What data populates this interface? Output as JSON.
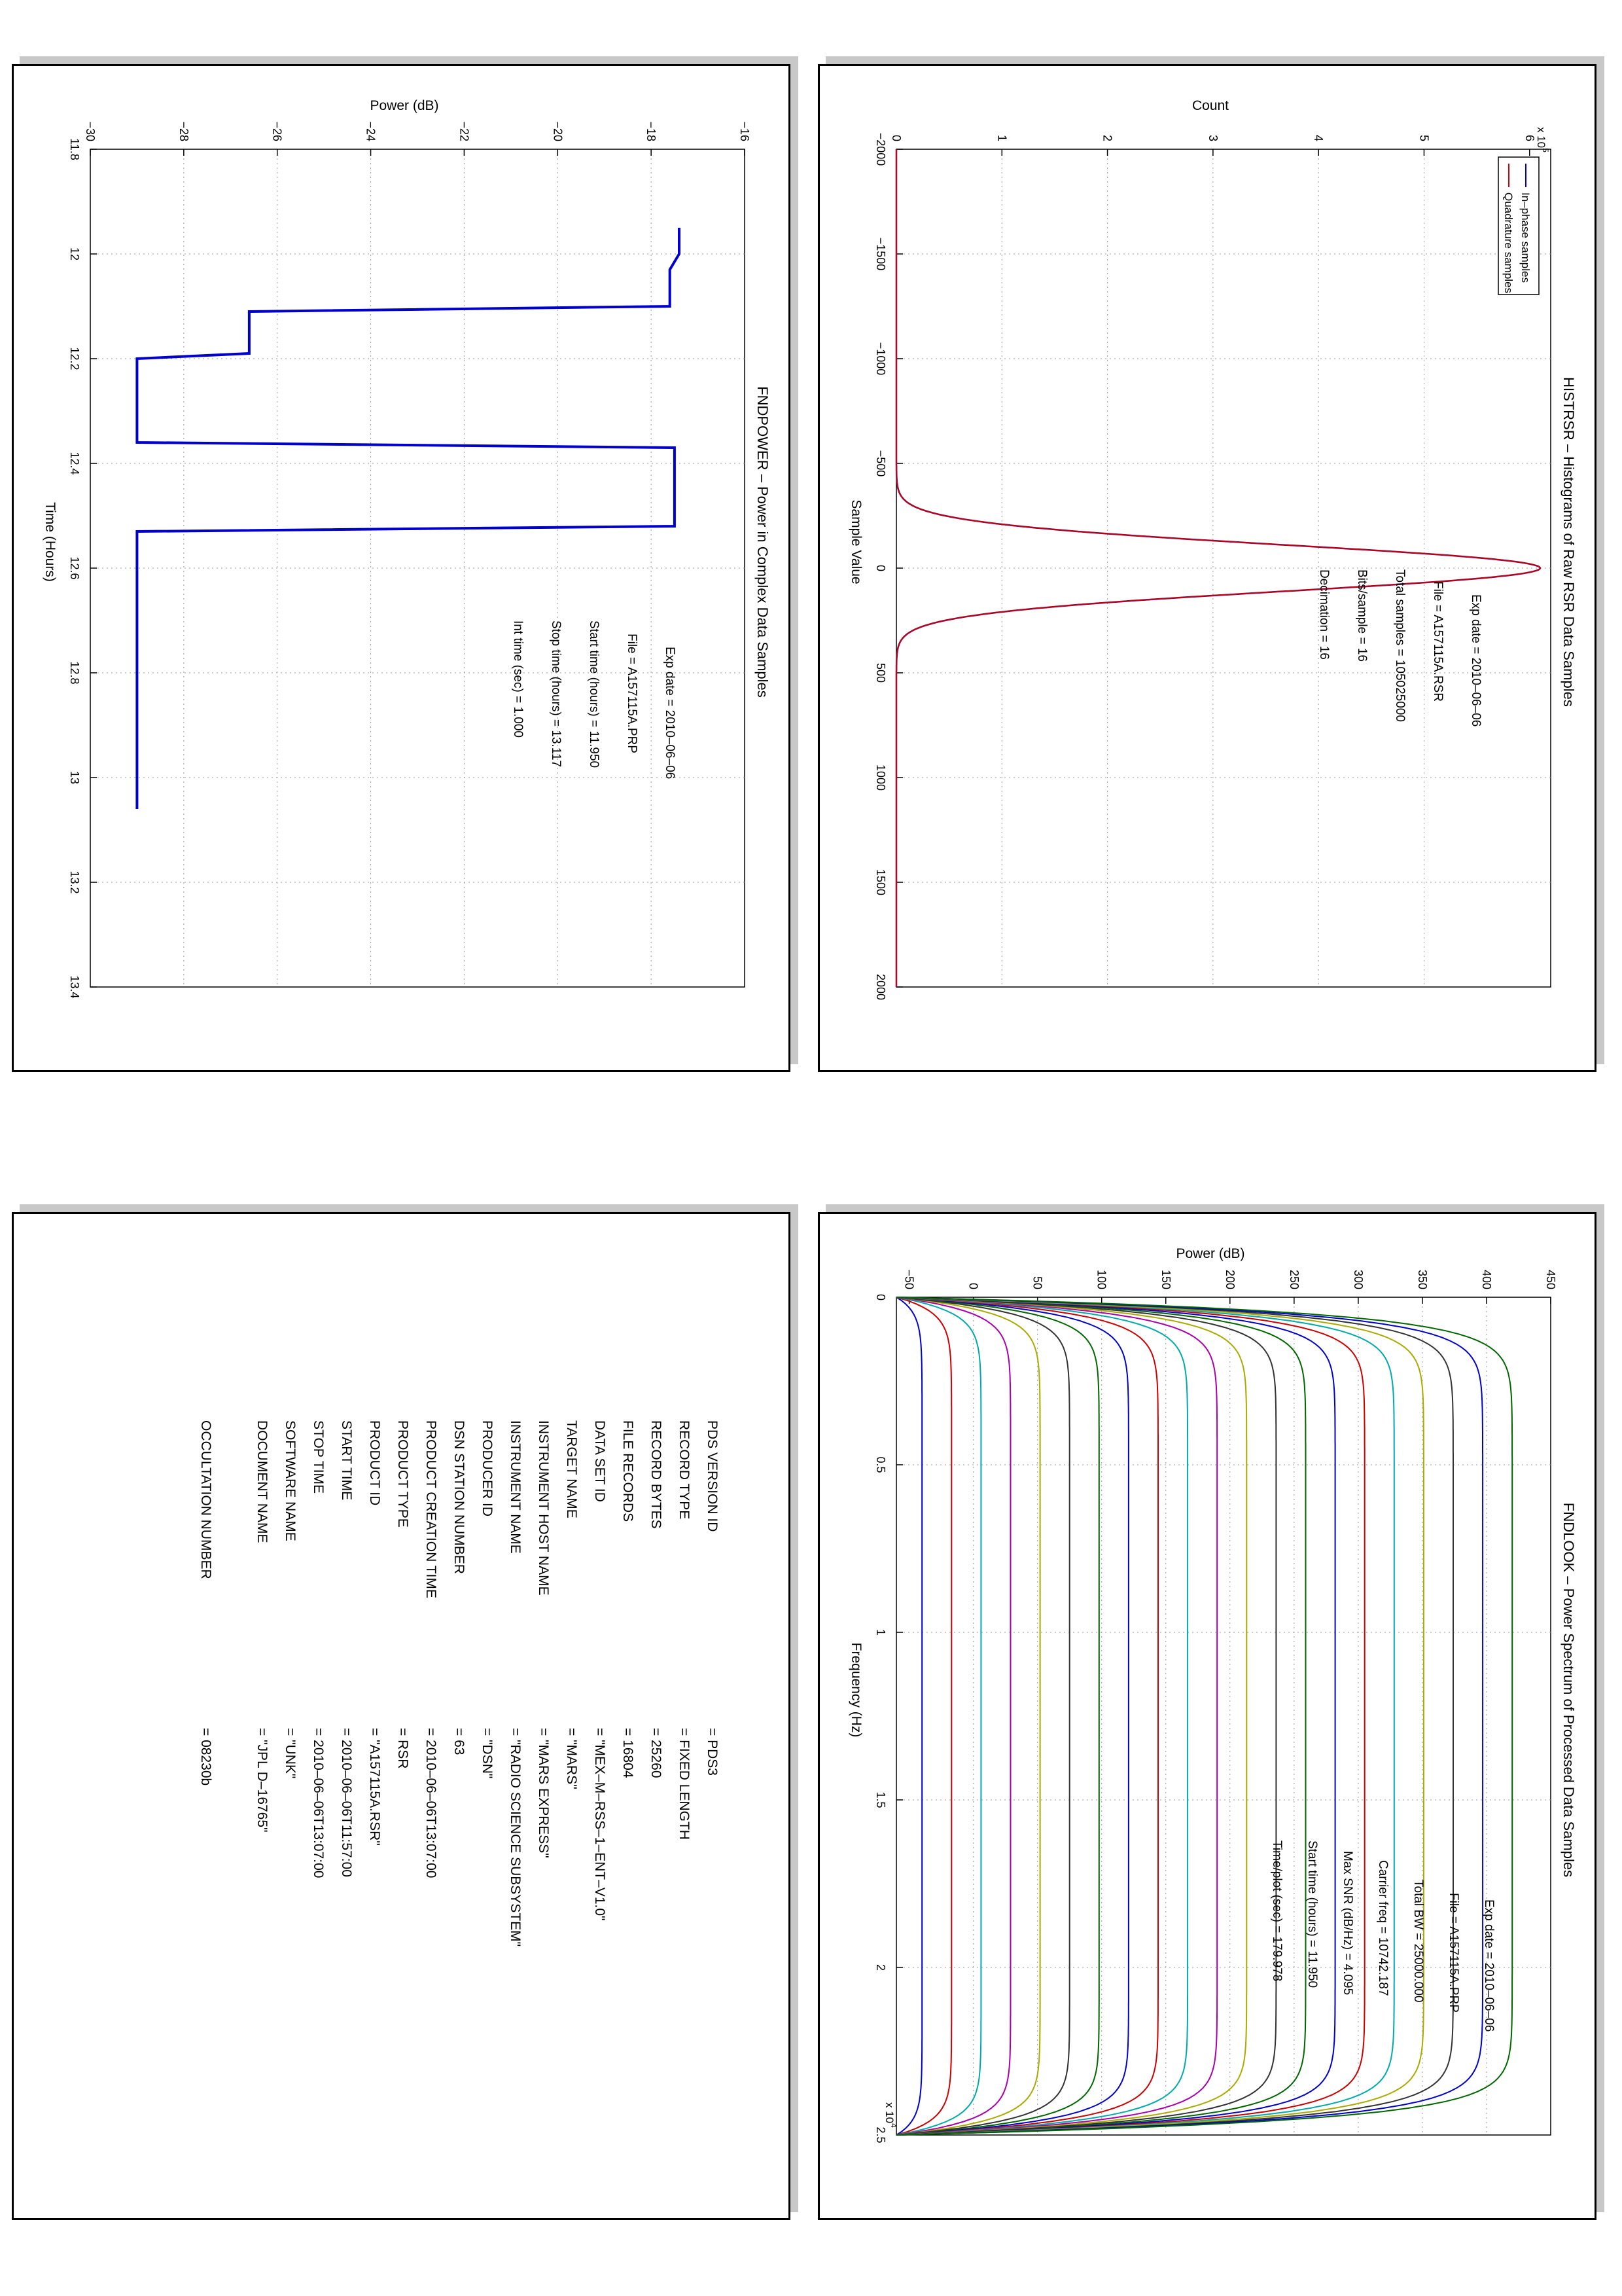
{
  "chart_data": [
    {
      "type": "line",
      "title": "HISTRSR – Histograms of Raw RSR Data Samples",
      "xlabel": "Sample Value",
      "ylabel": "Count",
      "y_multiplier": "x 10",
      "y_multiplier_exp": "5",
      "xlim": [
        -2000,
        2000
      ],
      "ylim": [
        0,
        6.2
      ],
      "xticks": [
        "−2000",
        "−1500",
        "−1000",
        "−500",
        "0",
        "500",
        "1000",
        "1500",
        "2000"
      ],
      "yticks": [
        "0",
        "1",
        "2",
        "3",
        "4",
        "5",
        "6"
      ],
      "grid": true,
      "legend_position": "top-left",
      "series": [
        {
          "name": "In–phase samples",
          "color": "#0000cc",
          "shape": "gaussian",
          "center": 0,
          "sigma": 110,
          "peak": 6.1
        },
        {
          "name": "Quadrature samples",
          "color": "#cc0000",
          "shape": "gaussian",
          "center": 0,
          "sigma": 110,
          "peak": 6.1
        }
      ],
      "annotations": [
        {
          "label": "Exp date =",
          "value": "2010–06–06"
        },
        {
          "label": "File =",
          "value": "A157115A.RSR"
        },
        {
          "label": "Total samples =",
          "value": "105025000"
        },
        {
          "label": "Bits/sample   =",
          "value": "16"
        },
        {
          "label": "Decimation    =",
          "value": "16"
        }
      ]
    },
    {
      "type": "line",
      "title": "FNDPOWER – Power in Complex Data Samples",
      "xlabel": "Time (Hours)",
      "ylabel": "Power (dB)",
      "xlim": [
        11.8,
        13.4
      ],
      "ylim": [
        -30,
        -16
      ],
      "xticks": [
        "11.8",
        "12",
        "12.2",
        "12.4",
        "12.6",
        "12.8",
        "13",
        "13.2",
        "13.4"
      ],
      "yticks": [
        "−30",
        "−28",
        "−26",
        "−24",
        "−22",
        "−20",
        "−18",
        "−16"
      ],
      "grid": true,
      "series": [
        {
          "name": "",
          "color": "#0000cc",
          "x": [
            11.95,
            12.0,
            12.03,
            12.1,
            12.11,
            12.19,
            12.2,
            12.36,
            12.37,
            12.52,
            12.53,
            13.06
          ],
          "y": [
            -17.4,
            -17.4,
            -17.6,
            -17.6,
            -26.6,
            -26.6,
            -29.0,
            -29.0,
            -17.5,
            -17.5,
            -29.0,
            -29.0
          ]
        }
      ],
      "annotations": [
        {
          "label": "Exp date =",
          "value": "2010–06–06"
        },
        {
          "label": "File =",
          "value": "A157115A.PRP"
        },
        {
          "label": "Start time (hours) =",
          "value": "11.950"
        },
        {
          "label": "Stop time (hours) =",
          "value": "13.117"
        },
        {
          "label": "Int time (sec) =",
          "value": "1.000"
        }
      ]
    },
    {
      "type": "line",
      "title": "FNDLOOK – Power Spectrum of Processed Data Samples",
      "xlabel": "Frequency (Hz)",
      "ylabel": "Power (dB)",
      "x_multiplier": "x 10",
      "x_multiplier_exp": "4",
      "xlim": [
        0,
        25000
      ],
      "ylim": [
        -60,
        450
      ],
      "xticks": [
        "0",
        "0.5",
        "1",
        "1.5",
        "2",
        "2.5"
      ],
      "yticks": [
        "−50",
        "0",
        "50",
        "100",
        "150",
        "200",
        "250",
        "300",
        "350",
        "400",
        "450"
      ],
      "grid": true,
      "series": [
        {
          "name": "",
          "color": "#0000cc",
          "level": -40
        },
        {
          "name": "",
          "color": "#cc0000",
          "level": -17
        },
        {
          "name": "",
          "color": "#00aaaa",
          "level": 6
        },
        {
          "name": "",
          "color": "#aa00aa",
          "level": 29
        },
        {
          "name": "",
          "color": "#aaaa00",
          "level": 52
        },
        {
          "name": "",
          "color": "#333333",
          "level": 75
        },
        {
          "name": "",
          "color": "#006600",
          "level": 98
        },
        {
          "name": "",
          "color": "#0000cc",
          "level": 121
        },
        {
          "name": "",
          "color": "#cc0000",
          "level": 144
        },
        {
          "name": "",
          "color": "#00aaaa",
          "level": 167
        },
        {
          "name": "",
          "color": "#aa00aa",
          "level": 190
        },
        {
          "name": "",
          "color": "#aaaa00",
          "level": 213
        },
        {
          "name": "",
          "color": "#333333",
          "level": 236
        },
        {
          "name": "",
          "color": "#006600",
          "level": 259
        },
        {
          "name": "",
          "color": "#0000cc",
          "level": 282
        },
        {
          "name": "",
          "color": "#cc0000",
          "level": 305
        },
        {
          "name": "",
          "color": "#00aaaa",
          "level": 328
        },
        {
          "name": "",
          "color": "#aaaa00",
          "level": 351
        },
        {
          "name": "",
          "color": "#333333",
          "level": 374
        },
        {
          "name": "",
          "color": "#0000cc",
          "level": 397
        },
        {
          "name": "",
          "color": "#006600",
          "level": 420
        }
      ],
      "annotations": [
        {
          "label": "Exp date =",
          "value": "2010–06–06"
        },
        {
          "label": "File =",
          "value": "A157115A.PRP"
        },
        {
          "label": "Total BW =",
          "value": "25000.000"
        },
        {
          "label": "Carrier freq =",
          "value": "10742.187"
        },
        {
          "label": "Max SNR (dB/Hz) =",
          "value": "4.095"
        },
        {
          "label": "Start time (hours) =",
          "value": "11.950"
        },
        {
          "label": "Time/plot (sec) =",
          "value": "179.978"
        }
      ]
    }
  ],
  "label_table": [
    {
      "key": "PDS VERSION ID",
      "value": "=  PDS3"
    },
    {
      "key": "RECORD TYPE",
      "value": "=  FIXED LENGTH"
    },
    {
      "key": "RECORD BYTES",
      "value": "=  25260"
    },
    {
      "key": "FILE RECORDS",
      "value": "=  16804"
    },
    {
      "key": "DATA SET ID",
      "value": "=  \"MEX–M–RSS–1–ENT–V1.0\""
    },
    {
      "key": "TARGET NAME",
      "value": "=  \"MARS\""
    },
    {
      "key": "INSTRUMENT HOST NAME",
      "value": "=  \"MARS EXPRESS\""
    },
    {
      "key": "INSTRUMENT NAME",
      "value": "=  \"RADIO SCIENCE SUBSYSTEM\""
    },
    {
      "key": "PRODUCER ID",
      "value": "=  \"DSN\""
    },
    {
      "key": "DSN STATION NUMBER",
      "value": "=  63"
    },
    {
      "key": "PRODUCT CREATION TIME",
      "value": "=  2010–06–06T13:07:00"
    },
    {
      "key": "PRODUCT TYPE",
      "value": "=  RSR"
    },
    {
      "key": "PRODUCT ID",
      "value": "=  \"A157115A.RSR\""
    },
    {
      "key": "START TIME",
      "value": "=  2010–06–06T11:57:00"
    },
    {
      "key": "STOP TIME",
      "value": "=  2010–06–06T13:07:00"
    },
    {
      "key": "SOFTWARE NAME",
      "value": "=  \"UNK\""
    },
    {
      "key": "DOCUMENT NAME",
      "value": "=  \"JPL D–16765\""
    },
    {
      "key": "",
      "value": ""
    },
    {
      "key": "OCCULTATION NUMBER",
      "value": "=  08230b"
    }
  ]
}
